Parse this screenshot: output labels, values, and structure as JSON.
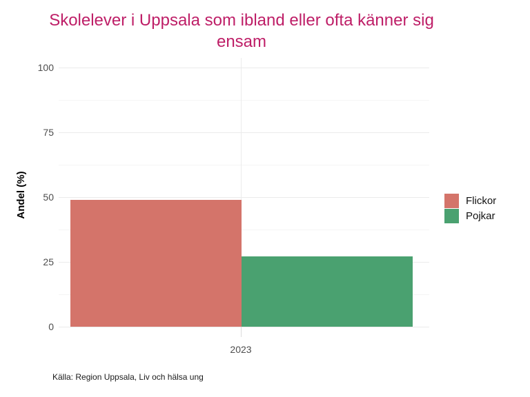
{
  "title": "Skolelever i Uppsala som ibland eller ofta känner sig ensam",
  "caption": "Källa: Region Uppsala, Liv och hälsa ung",
  "colors": {
    "title": "#BE1E67",
    "flickor_bar": "#D4746A",
    "pojkar_bar": "#4AA170",
    "axis_text": "#4D4D4D",
    "grid_major": "#EBEBEB",
    "grid_minor": "#F5F5F5"
  },
  "chart_data": {
    "type": "bar",
    "categories": [
      "2023"
    ],
    "series": [
      {
        "name": "Flickor",
        "values": [
          49
        ],
        "color": "#D4746A"
      },
      {
        "name": "Pojkar",
        "values": [
          27
        ],
        "color": "#4AA170"
      }
    ],
    "title": "Skolelever i Uppsala som ibland eller ofta känner sig ensam",
    "xlabel": "",
    "ylabel": "Andel (%)",
    "ylim": [
      0,
      100
    ],
    "yticks": [
      0,
      25,
      50,
      75,
      100
    ],
    "yticks_minor": [
      12.5,
      37.5,
      62.5,
      87.5
    ],
    "grid": true,
    "legend_position": "right",
    "caption": "Källa: Region Uppsala, Liv och hälsa ung"
  }
}
